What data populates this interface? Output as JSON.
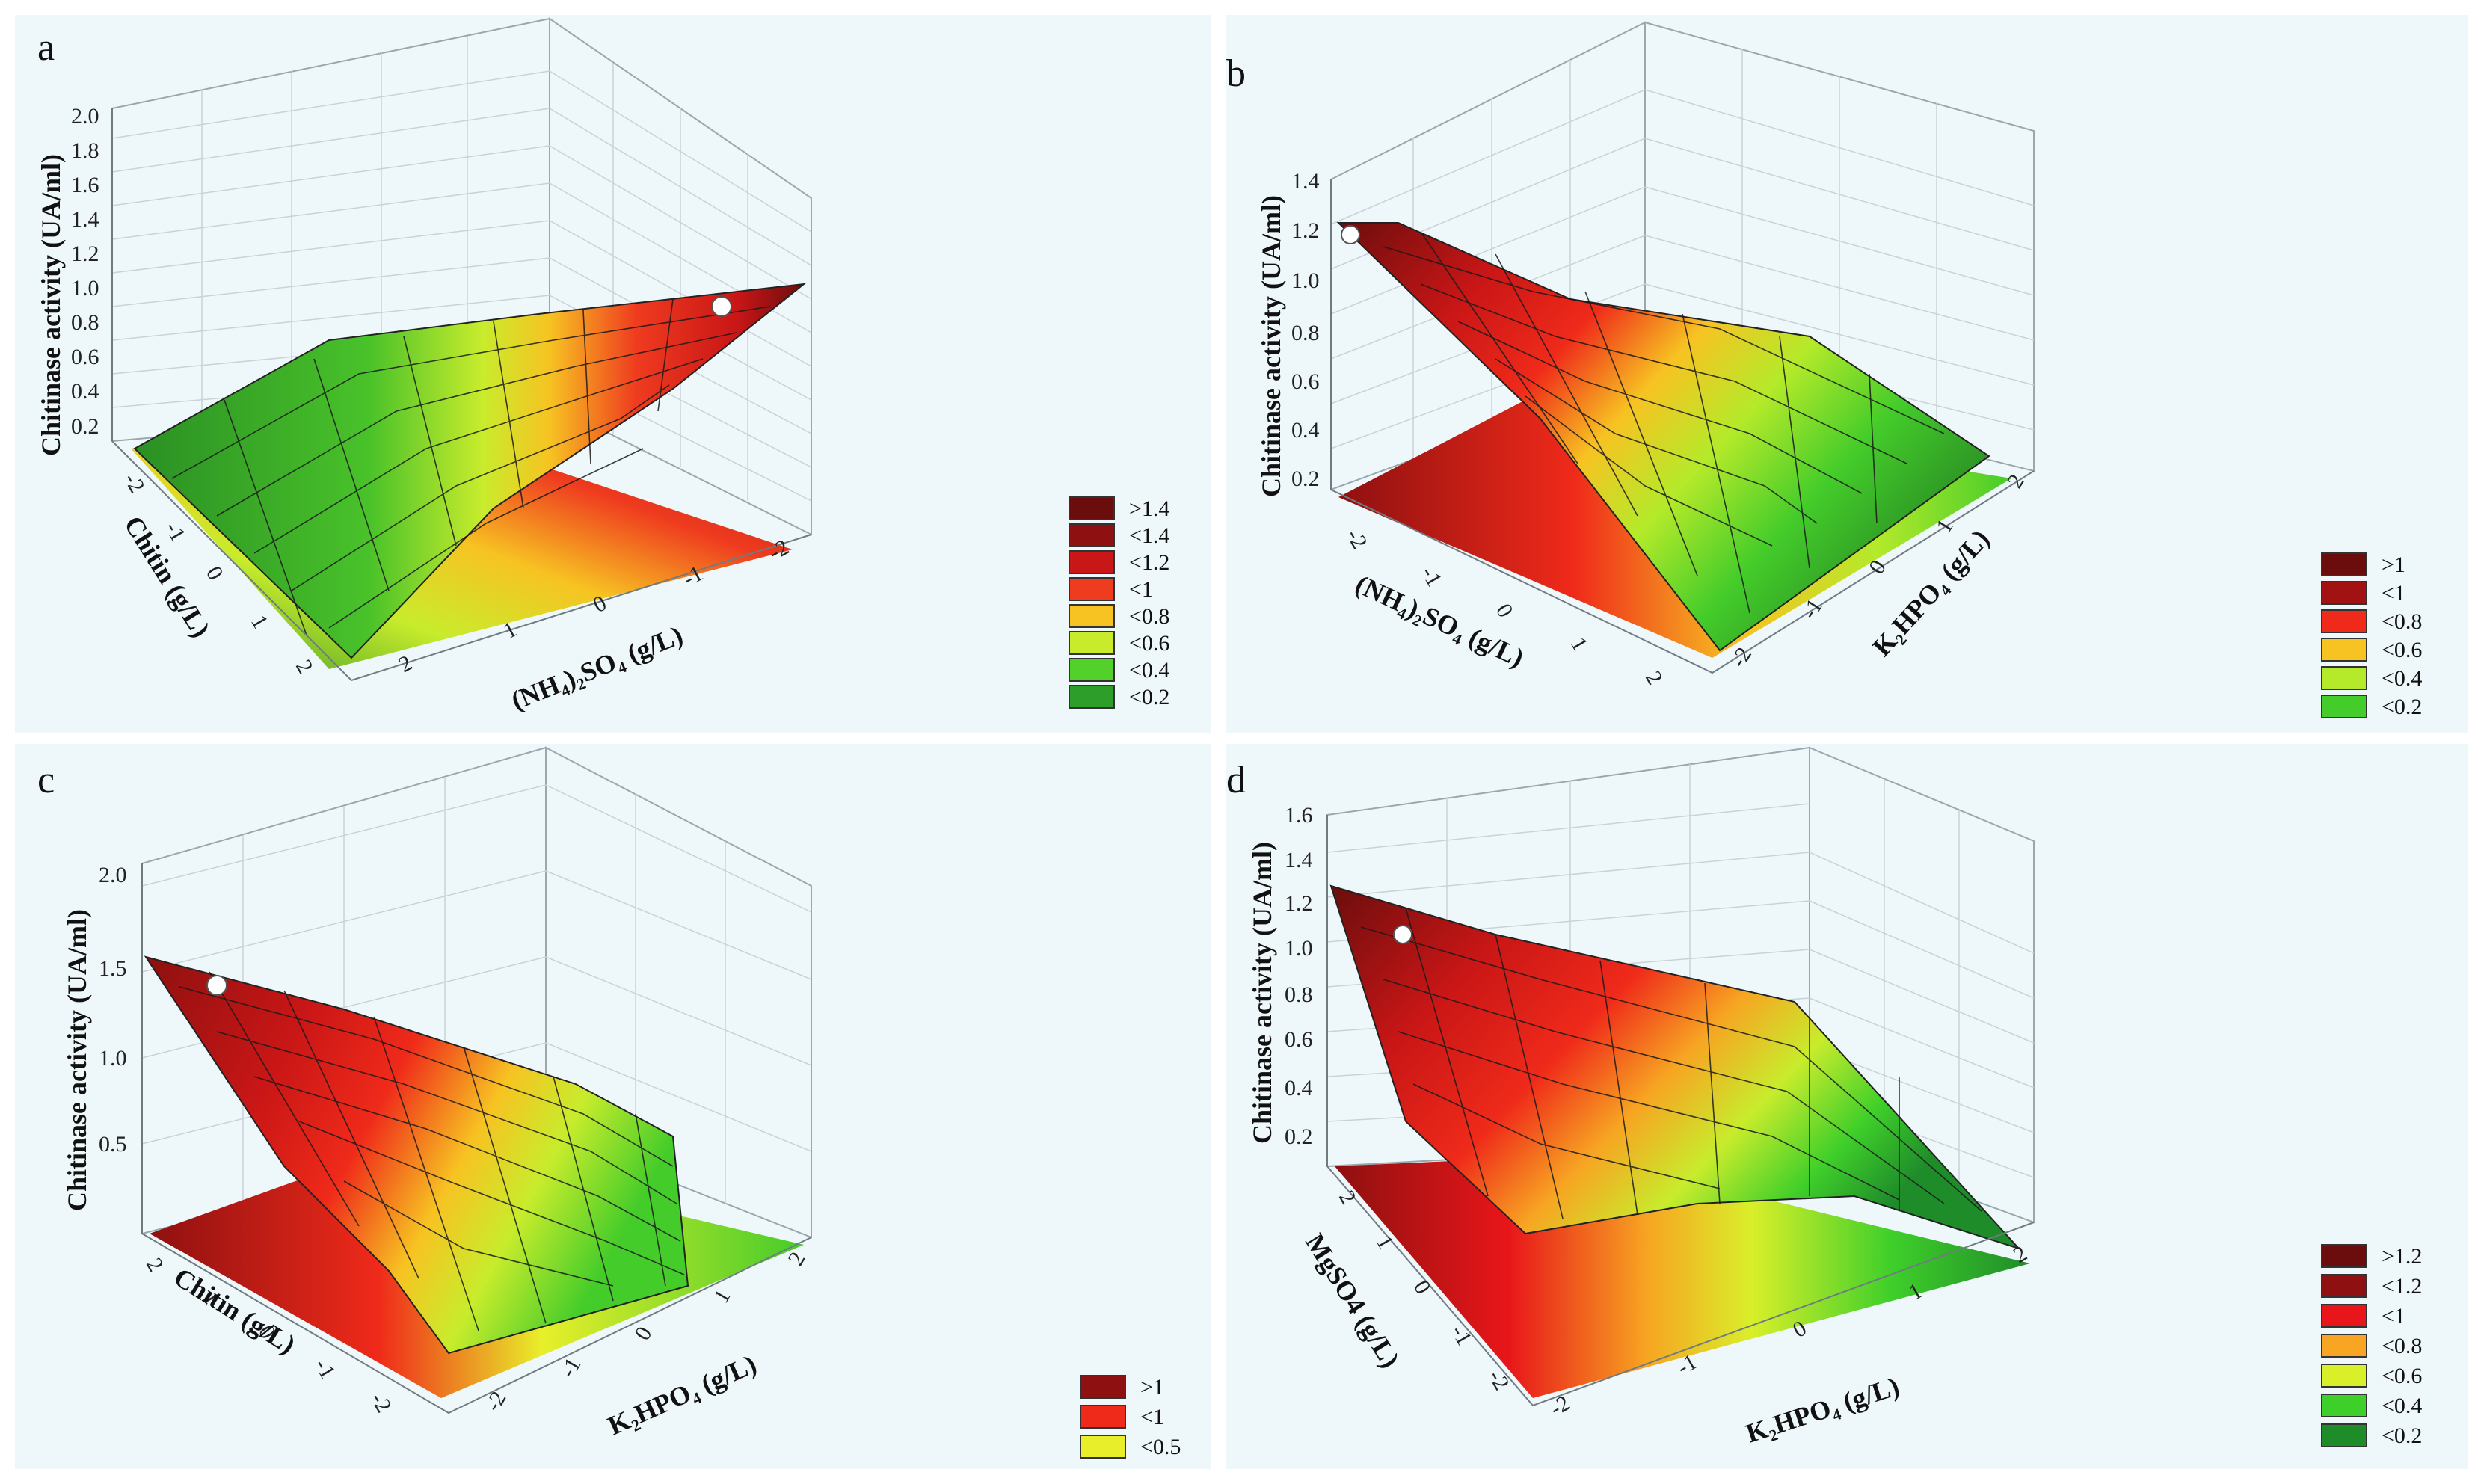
{
  "figure": {
    "caption": "Response surface plots of chitinase activity"
  },
  "chart_data": [
    {
      "id": "a",
      "type": "surface",
      "panel_label": "a",
      "zlabel": "Chitinase activity (UA/ml)",
      "xlabel": "(NH₄)₂SO₄ (g/L)",
      "ylabel": "Chitin (g/L)",
      "x_ticks": [
        "2",
        "1",
        "0",
        "-1",
        "-2"
      ],
      "y_ticks": [
        "-2",
        "-1",
        "0",
        "1",
        "2"
      ],
      "z_ticks": [
        "0.2",
        "0.4",
        "0.6",
        "0.8",
        "1.0",
        "1.2",
        "1.4",
        "1.6",
        "1.8",
        "2.0"
      ],
      "zlim": [
        0,
        2.0
      ],
      "legend": [
        {
          "label": ">1.4",
          "color": "#6b0d0d"
        },
        {
          "label": "<1.4",
          "color": "#8e1010"
        },
        {
          "label": "<1.2",
          "color": "#c91616"
        },
        {
          "label": "<1",
          "color": "#ef3b1f"
        },
        {
          "label": "<0.8",
          "color": "#f7c322"
        },
        {
          "label": "<0.6",
          "color": "#c8ec2c"
        },
        {
          "label": "<0.4",
          "color": "#52d12a"
        },
        {
          "label": "<0.2",
          "color": "#2e9e2b"
        }
      ]
    },
    {
      "id": "b",
      "type": "surface",
      "panel_label": "b",
      "zlabel": "Chitinase activity (UA/ml)",
      "xlabel": "(NH₄)₂SO₄ (g/L)",
      "ylabel": "K₂HPO₄ (g/L)",
      "x_ticks": [
        "-2",
        "-1",
        "0",
        "1",
        "2"
      ],
      "y_ticks": [
        "-2",
        "-1",
        "0",
        "1",
        "2"
      ],
      "z_ticks": [
        "0.2",
        "0.4",
        "0.6",
        "0.8",
        "1.0",
        "1.2",
        "1.4"
      ],
      "zlim": [
        0,
        1.4
      ],
      "legend": [
        {
          "label": ">1",
          "color": "#6b0d0d"
        },
        {
          "label": "<1",
          "color": "#a31212"
        },
        {
          "label": "<0.8",
          "color": "#ef2a1a"
        },
        {
          "label": "<0.6",
          "color": "#f7c322"
        },
        {
          "label": "<0.4",
          "color": "#b4ea2a"
        },
        {
          "label": "<0.2",
          "color": "#44cc2a"
        }
      ]
    },
    {
      "id": "c",
      "type": "surface",
      "panel_label": "c",
      "zlabel": "Chitinase activity (UA/ml)",
      "xlabel": "K₂HPO₄ (g/L)",
      "ylabel": "Chitin (g/L)",
      "x_ticks": [
        "-2",
        "-1",
        "0",
        "1",
        "2"
      ],
      "y_ticks": [
        "2",
        "1",
        "0",
        "-1",
        "-2"
      ],
      "z_ticks": [
        "0.5",
        "1.0",
        "1.5",
        "2.0"
      ],
      "zlim": [
        0,
        2.0
      ],
      "legend": [
        {
          "label": ">1",
          "color": "#8e1010"
        },
        {
          "label": "<1",
          "color": "#ef2a1a"
        },
        {
          "label": "<0.5",
          "color": "#e8ef2a"
        }
      ]
    },
    {
      "id": "d",
      "type": "surface",
      "panel_label": "d",
      "zlabel": "Chitinase activity (UA/ml)",
      "xlabel": "K₂HPO₄ (g/L)",
      "ylabel": "MgSO4 (g/L)",
      "x_ticks": [
        "-2",
        "-1",
        "0",
        "1",
        "2"
      ],
      "y_ticks": [
        "2",
        "1",
        "0",
        "-1",
        "-2"
      ],
      "z_ticks": [
        "0.2",
        "0.4",
        "0.6",
        "0.8",
        "1.0",
        "1.2",
        "1.4",
        "1.6"
      ],
      "zlim": [
        0,
        1.6
      ],
      "legend": [
        {
          "label": ">1.2",
          "color": "#6b0d0d"
        },
        {
          "label": "<1.2",
          "color": "#8e1010"
        },
        {
          "label": "<1",
          "color": "#e8161a"
        },
        {
          "label": "<0.8",
          "color": "#f7a522"
        },
        {
          "label": "<0.6",
          "color": "#d9ef2a"
        },
        {
          "label": "<0.4",
          "color": "#3fcf2a"
        },
        {
          "label": "<0.2",
          "color": "#1f8c2a"
        }
      ]
    }
  ]
}
